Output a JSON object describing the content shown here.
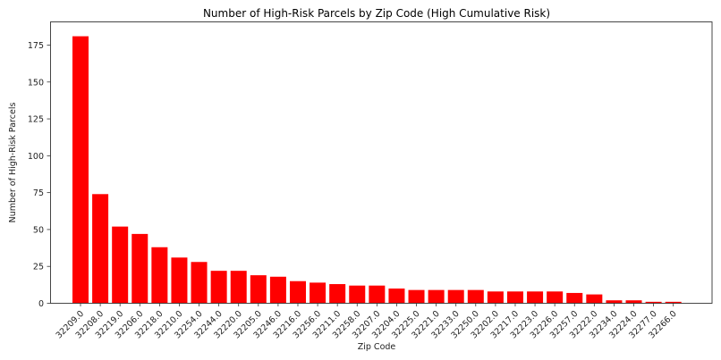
{
  "chart_data": {
    "type": "bar",
    "title": "Number of High-Risk Parcels by Zip Code (High Cumulative Risk)",
    "xlabel": "Zip Code",
    "ylabel": "Number of High-Risk Parcels",
    "categories": [
      "32209.0",
      "32208.0",
      "32219.0",
      "32206.0",
      "32218.0",
      "32210.0",
      "32254.0",
      "32244.0",
      "32220.0",
      "32205.0",
      "32246.0",
      "32216.0",
      "32256.0",
      "32211.0",
      "32258.0",
      "32207.0",
      "32204.0",
      "32225.0",
      "32221.0",
      "32233.0",
      "32250.0",
      "32202.0",
      "32217.0",
      "32223.0",
      "32226.0",
      "32257.0",
      "32222.0",
      "32234.0",
      "32224.0",
      "32277.0",
      "32266.0"
    ],
    "values": [
      181,
      74,
      52,
      47,
      38,
      31,
      28,
      22,
      22,
      19,
      18,
      15,
      14,
      13,
      12,
      12,
      10,
      9,
      9,
      9,
      9,
      8,
      8,
      8,
      8,
      7,
      6,
      2,
      2,
      1,
      1
    ],
    "yticks": [
      0,
      25,
      50,
      75,
      100,
      125,
      150,
      175
    ],
    "ylim": [
      0,
      190
    ],
    "bar_color": "#ff0000",
    "grid": false,
    "legend": null,
    "xtick_rotation": 45
  }
}
